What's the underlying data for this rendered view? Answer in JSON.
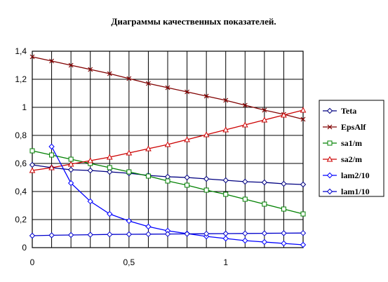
{
  "chart_data": {
    "type": "line",
    "title": "Диаграммы качественных показателей.",
    "xlabel": "",
    "ylabel": "",
    "xlim": [
      0,
      1.4
    ],
    "ylim": [
      0,
      1.4
    ],
    "x_ticks": [
      "0",
      "0,5",
      "1"
    ],
    "y_ticks": [
      "0",
      "0,2",
      "0,4",
      "0,6",
      "0,8",
      "1",
      "1,2",
      "1,4"
    ],
    "grid": true,
    "legend_position": "right",
    "series": [
      {
        "name": "Teta",
        "color": "#000080",
        "marker": "diamond",
        "x": [
          0,
          0.1,
          0.2,
          0.3,
          0.4,
          0.5,
          0.6,
          0.7,
          0.8,
          0.9,
          1.0,
          1.1,
          1.2,
          1.3,
          1.4
        ],
        "y": [
          0.59,
          0.57,
          0.555,
          0.55,
          0.54,
          0.53,
          0.515,
          0.505,
          0.5,
          0.49,
          0.48,
          0.47,
          0.465,
          0.455,
          0.45
        ]
      },
      {
        "name": "EpsAlf",
        "color": "#800000",
        "marker": "x",
        "x": [
          0,
          0.1,
          0.2,
          0.3,
          0.4,
          0.5,
          0.6,
          0.7,
          0.8,
          0.9,
          1.0,
          1.1,
          1.2,
          1.3,
          1.4
        ],
        "y": [
          1.36,
          1.33,
          1.3,
          1.27,
          1.24,
          1.205,
          1.17,
          1.14,
          1.11,
          1.08,
          1.05,
          1.015,
          0.98,
          0.95,
          0.915
        ]
      },
      {
        "name": "sa1/m",
        "color": "#008000",
        "marker": "square",
        "x": [
          0,
          0.1,
          0.2,
          0.3,
          0.4,
          0.5,
          0.6,
          0.7,
          0.8,
          0.9,
          1.0,
          1.1,
          1.2,
          1.3,
          1.4
        ],
        "y": [
          0.69,
          0.66,
          0.63,
          0.6,
          0.57,
          0.54,
          0.51,
          0.475,
          0.445,
          0.41,
          0.38,
          0.345,
          0.31,
          0.275,
          0.24
        ]
      },
      {
        "name": "sa2/m",
        "color": "#cc0000",
        "marker": "triangle",
        "x": [
          0,
          0.1,
          0.2,
          0.3,
          0.4,
          0.5,
          0.6,
          0.7,
          0.8,
          0.9,
          1.0,
          1.1,
          1.2,
          1.3,
          1.4
        ],
        "y": [
          0.55,
          0.57,
          0.595,
          0.62,
          0.645,
          0.675,
          0.705,
          0.735,
          0.77,
          0.805,
          0.84,
          0.875,
          0.91,
          0.945,
          0.98
        ]
      },
      {
        "name": "lam2/10",
        "color": "#0000ff",
        "marker": "diamond-open",
        "x": [
          0.1,
          0.2,
          0.3,
          0.4,
          0.5,
          0.6,
          0.7,
          0.8,
          0.9,
          1.0,
          1.1,
          1.2,
          1.3,
          1.4
        ],
        "y": [
          0.72,
          0.46,
          0.33,
          0.24,
          0.19,
          0.15,
          0.12,
          0.1,
          0.08,
          0.065,
          0.05,
          0.04,
          0.03,
          0.02
        ]
      },
      {
        "name": "lam1/10",
        "color": "#0000cc",
        "marker": "diamond",
        "x": [
          0,
          0.1,
          0.2,
          0.3,
          0.4,
          0.5,
          0.6,
          0.7,
          0.8,
          0.9,
          1.0,
          1.1,
          1.2,
          1.3,
          1.4
        ],
        "y": [
          0.085,
          0.088,
          0.09,
          0.092,
          0.094,
          0.095,
          0.096,
          0.097,
          0.098,
          0.099,
          0.1,
          0.101,
          0.102,
          0.103,
          0.104
        ]
      }
    ]
  }
}
